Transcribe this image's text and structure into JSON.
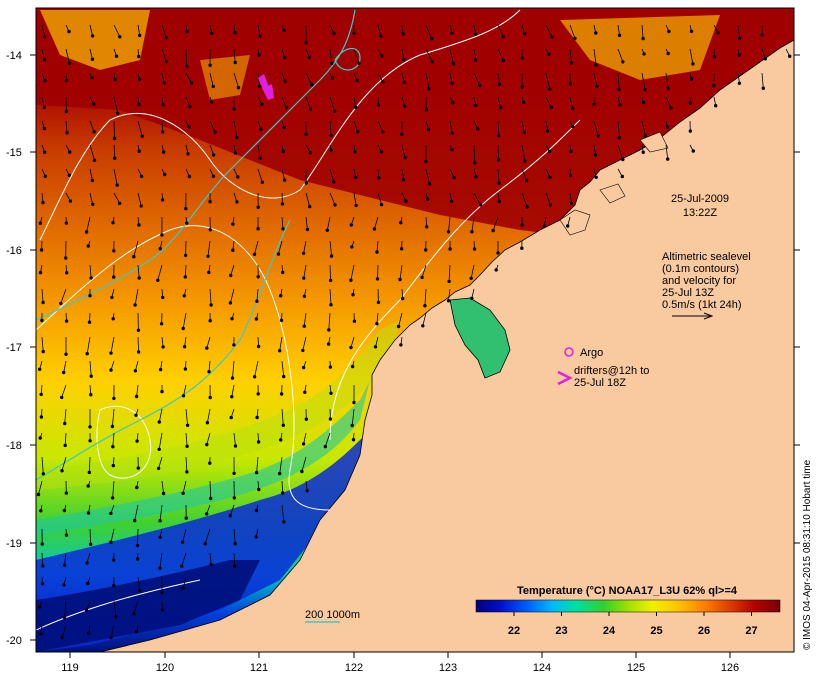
{
  "map": {
    "lon_ticks": [
      "119",
      "120",
      "121",
      "122",
      "123",
      "124",
      "125",
      "126"
    ],
    "lat_ticks": [
      "-14",
      "-15",
      "-16",
      "-17",
      "-18",
      "-19",
      "-20"
    ],
    "date": "25-Jul-2009",
    "time": "13:22Z",
    "sealevel_note": [
      "Altimetric sealevel",
      "(0.1m contours)",
      "and velocity for",
      "25-Jul 13Z",
      "0.5m/s (1kt 24h)"
    ],
    "argo_label": "Argo",
    "drifters_label": [
      "drifters@12h to",
      "25-Jul 18Z"
    ],
    "isobath_label": "200  1000m",
    "credit": "© IMOS 04-Apr-2015 08:31:10 Hobart time",
    "colors": {
      "land": "#f9c9a0",
      "isobath": "#3fc8c8",
      "sealevel_contour": "#ffffff",
      "argo": "#e020e0",
      "drifters": "#e020e0"
    }
  },
  "colorbar": {
    "title": "Temperature (°C) NOAA17_L3U 62% ql>=4",
    "ticks": [
      "22",
      "23",
      "24",
      "25",
      "26",
      "27"
    ],
    "range": [
      21.2,
      27.6
    ],
    "colors": [
      "#00007a",
      "#0010c8",
      "#0060ff",
      "#00b8ff",
      "#00e0a0",
      "#30d030",
      "#a0e000",
      "#f0f000",
      "#ffc000",
      "#ff8000",
      "#e04000",
      "#b00000",
      "#7a0000"
    ]
  }
}
